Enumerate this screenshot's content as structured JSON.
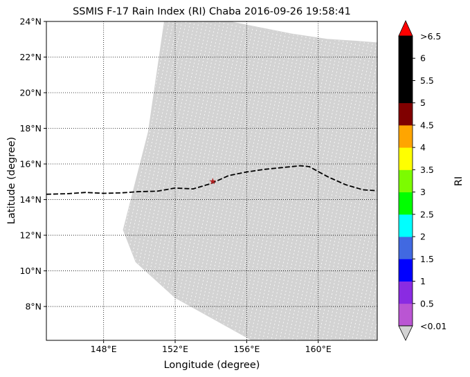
{
  "title": "SSMIS F-17 Rain Index (RI) Chaba 2016-09-26 19:58:41",
  "xlabel": "Longitude (degree)",
  "ylabel": "Latitude (degree)",
  "colorbar": {
    "label": "RI",
    "top_label": ">6.5",
    "bottom_label": "<0.01",
    "tick_labels": [
      "0.5",
      "1",
      "1.5",
      "2",
      "2.5",
      "3",
      "3.5",
      "4",
      "4.5",
      "5",
      "5.5",
      "6"
    ],
    "top_extend_color": "#ff0000",
    "bottom_extend_color": "#d3d3d3",
    "colors": [
      "#ba55d3",
      "#8a2be2",
      "#0000ff",
      "#4169e1",
      "#00ffff",
      "#00ff00",
      "#7cfc00",
      "#ffff00",
      "#ffa500",
      "#800000",
      "#000000",
      "#000000",
      "#000000"
    ]
  },
  "colors": {
    "swath": "#d3d3d3",
    "track": "#000000",
    "storm_marker": "#b22222"
  },
  "chart_data": {
    "type": "map",
    "lon_range": [
      144.8,
      163.3
    ],
    "lat_range": [
      6.1,
      24.0
    ],
    "lon_ticks": [
      148,
      152,
      156,
      160
    ],
    "lon_tick_labels": [
      "148°E",
      "152°E",
      "156°E",
      "160°E"
    ],
    "lat_ticks": [
      8,
      10,
      12,
      14,
      16,
      18,
      20,
      22,
      24
    ],
    "lat_tick_labels": [
      "8°N",
      "10°N",
      "12°N",
      "14°N",
      "16°N",
      "18°N",
      "20°N",
      "22°N",
      "24°N"
    ],
    "grid": true,
    "swath_outline_lonlat": [
      [
        151.4,
        24.0
      ],
      [
        155.0,
        24.0
      ],
      [
        156.5,
        23.7
      ],
      [
        158.5,
        23.3
      ],
      [
        160.5,
        23.0
      ],
      [
        162.0,
        22.9
      ],
      [
        163.3,
        22.8
      ],
      [
        163.3,
        6.1
      ],
      [
        156.3,
        6.1
      ],
      [
        152.0,
        8.5
      ],
      [
        149.8,
        10.5
      ],
      [
        149.1,
        12.3
      ],
      [
        150.5,
        17.8
      ],
      [
        151.4,
        24.0
      ]
    ],
    "track_lonlat": [
      [
        144.8,
        14.3
      ],
      [
        146.0,
        14.33
      ],
      [
        147.0,
        14.4
      ],
      [
        148.0,
        14.35
      ],
      [
        149.0,
        14.38
      ],
      [
        150.0,
        14.45
      ],
      [
        151.0,
        14.47
      ],
      [
        152.0,
        14.65
      ],
      [
        153.0,
        14.6
      ],
      [
        154.0,
        14.9
      ],
      [
        155.0,
        15.35
      ],
      [
        156.0,
        15.55
      ],
      [
        157.0,
        15.7
      ],
      [
        158.0,
        15.8
      ],
      [
        159.0,
        15.9
      ],
      [
        159.5,
        15.85
      ],
      [
        160.5,
        15.3
      ],
      [
        161.5,
        14.85
      ],
      [
        162.5,
        14.55
      ],
      [
        163.3,
        14.5
      ]
    ],
    "storm_center_lonlat": [
      154.1,
      15.0
    ]
  }
}
